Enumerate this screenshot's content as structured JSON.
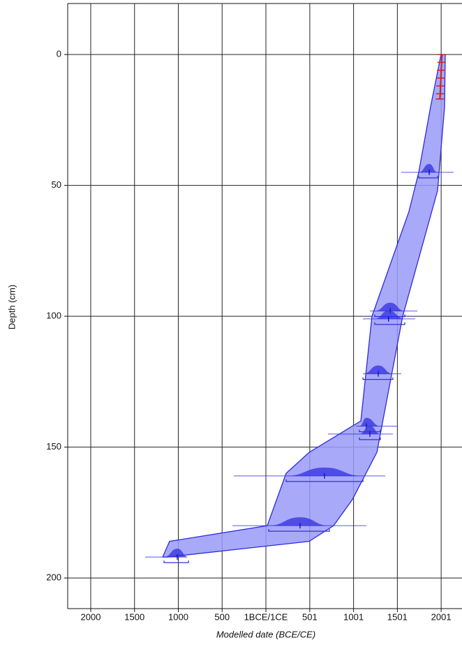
{
  "chart_data": {
    "type": "age-depth",
    "xlabel": "Modelled date (BCE/CE)",
    "ylabel": "Depth (cm)",
    "xlim": [
      -2263,
      2239
    ],
    "ylim": [
      -19.5,
      211.7
    ],
    "y_inverted": true,
    "grid": true,
    "xticks": [
      {
        "value": -2000,
        "label": "2000"
      },
      {
        "value": -1500,
        "label": "1500"
      },
      {
        "value": -1000,
        "label": "1000"
      },
      {
        "value": -500,
        "label": "500"
      },
      {
        "value": 0,
        "label": "1BCE/1CE"
      },
      501,
      1001,
      1501,
      2001
    ],
    "yticks": [
      0,
      50,
      100,
      150,
      200
    ],
    "envelope": {
      "color": "#9a9af8",
      "edge_color": "#2b2bdd",
      "old_edge": {
        "depth": [
          0,
          20,
          45,
          60,
          100,
          140,
          152,
          160,
          180,
          186,
          192
        ],
        "date": [
          2000,
          1880,
          1745,
          1633,
          1211,
          1084,
          494,
          231,
          16,
          -1100,
          -1179
        ]
      },
      "young_edge": {
        "depth": [
          0,
          20,
          52,
          100,
          152,
          170,
          180,
          186,
          192
        ],
        "date": [
          2048,
          2040,
          1960,
          1562,
          1267,
          988,
          773,
          494,
          -1124
        ]
      }
    },
    "sample_color": "#3030e0",
    "samples": [
      {
        "depth": 45,
        "date_low": 1546,
        "date_high": 2143,
        "model_low": 1745,
        "model_high": 1960,
        "mean": 1865
      },
      {
        "depth": 98,
        "date_low": 1187,
        "date_high": 1729,
        "model_low": 1243,
        "model_high": 1586,
        "mean": 1420
      },
      {
        "depth": 101,
        "date_low": 1108,
        "date_high": 1705,
        "model_low": 1243,
        "model_high": 1586,
        "mean": 1400
      },
      {
        "depth": 122,
        "date_low": 1108,
        "date_high": 1546,
        "model_low": 1108,
        "model_high": 1450,
        "mean": 1283
      },
      {
        "depth": 142,
        "date_low": 1028,
        "date_high": 1506,
        "model_low": 1068,
        "model_high": 1307,
        "mean": 1147
      },
      {
        "depth": 145,
        "date_low": 709,
        "date_high": 1450,
        "model_low": 1068,
        "model_high": 1307,
        "mean": 1187
      },
      {
        "depth": 161,
        "date_low": -367,
        "date_high": 1363,
        "model_low": 231,
        "model_high": 1108,
        "mean": 669
      },
      {
        "depth": 180,
        "date_low": -382,
        "date_high": 1147,
        "model_low": 32,
        "model_high": 725,
        "mean": 390
      },
      {
        "depth": 192,
        "date_low": -1378,
        "date_high": -900,
        "model_low": -1163,
        "model_high": -884,
        "mean": -1012
      }
    ],
    "surface": {
      "color": "#cc2222",
      "depth": [
        0,
        3,
        6,
        9,
        12,
        15,
        17
      ],
      "date": [
        2010,
        2006,
        2002,
        1998,
        1994,
        1990,
        1986
      ]
    }
  }
}
